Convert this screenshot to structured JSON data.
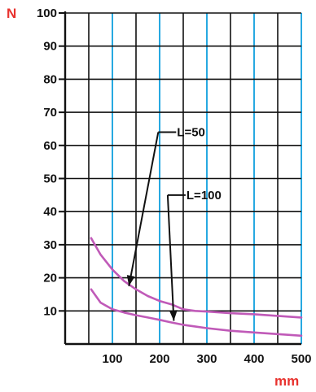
{
  "chart_data": {
    "type": "line",
    "xlim": [
      0,
      500
    ],
    "ylim": [
      0,
      100
    ],
    "x_ticks": [
      100,
      200,
      300,
      400,
      500
    ],
    "y_ticks": [
      10,
      20,
      30,
      40,
      50,
      60,
      70,
      80,
      90,
      100
    ],
    "x_unit": "mm",
    "y_unit": "N",
    "grid": true,
    "colors": {
      "unit_labels": "#e8322e",
      "series": "#c05ab8",
      "vertical_grid": "#27a9e1",
      "horizontal_grid": "#111111",
      "axes": "#111111"
    },
    "series": [
      {
        "name": "L=50",
        "x": [
          55,
          75,
          100,
          125,
          150,
          175,
          200,
          225,
          250,
          275,
          300,
          350,
          400,
          450,
          500
        ],
        "y": [
          32,
          27,
          22.5,
          19,
          16.5,
          14.5,
          13,
          12,
          10.5,
          10,
          9.8,
          9.3,
          9,
          8.5,
          8
        ]
      },
      {
        "name": "L=100",
        "x": [
          55,
          75,
          100,
          125,
          150,
          175,
          200,
          225,
          250,
          275,
          300,
          350,
          400,
          450,
          500
        ],
        "y": [
          16.5,
          12.5,
          10.5,
          9.5,
          8.7,
          8,
          7.3,
          6.5,
          5.8,
          5.3,
          4.8,
          4,
          3.5,
          3,
          2.5
        ]
      }
    ],
    "annotations": [
      {
        "label": "L=50",
        "series": "L=50",
        "point": [
          135,
          17.5
        ],
        "text_at": [
          235,
          64
        ]
      },
      {
        "label": "L=100",
        "series": "L=100",
        "point": [
          230,
          7
        ],
        "text_at": [
          255,
          45
        ]
      }
    ]
  }
}
